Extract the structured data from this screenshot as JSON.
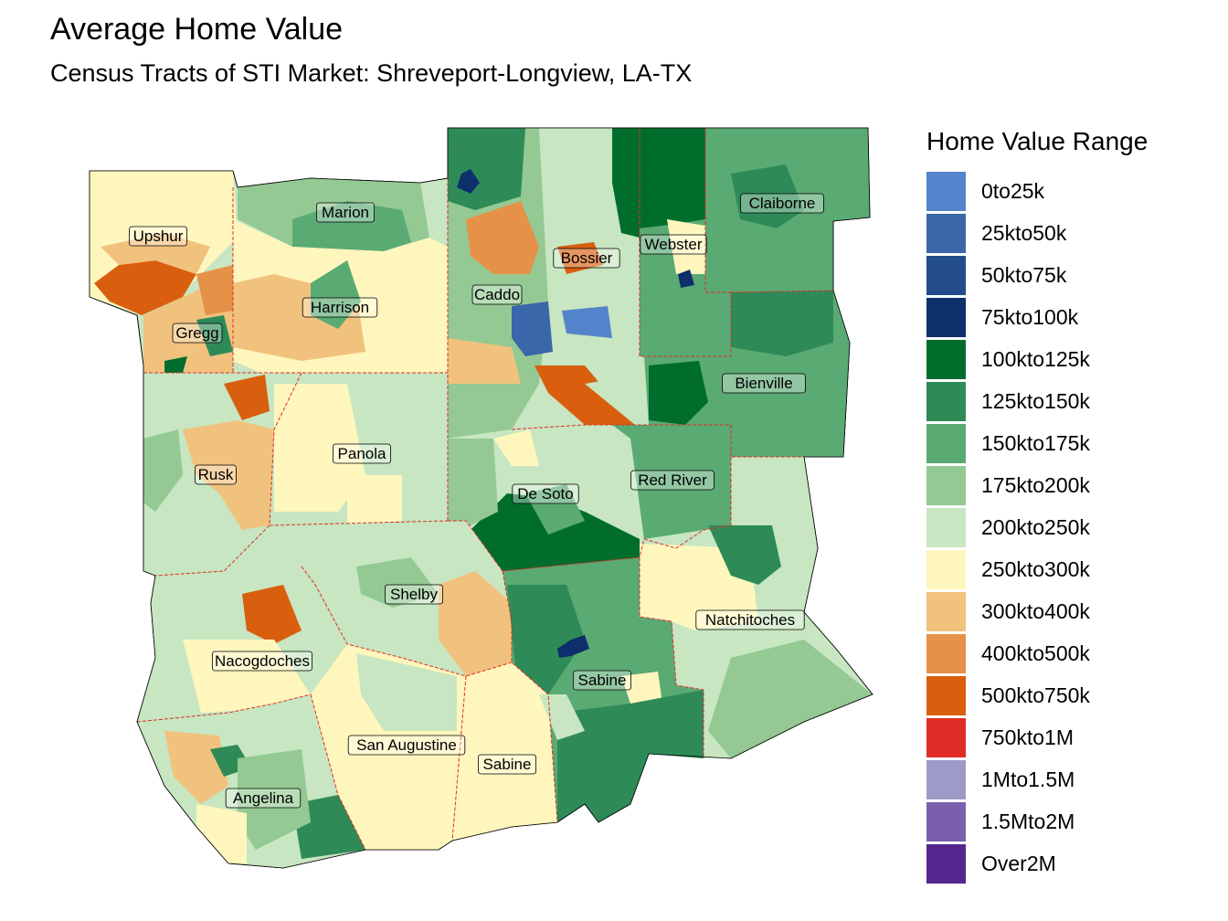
{
  "title": "Average Home Value",
  "subtitle": "Census Tracts of STI Market: Shreveport-Longview, LA-TX",
  "legend": {
    "title": "Home Value Range",
    "items": [
      {
        "label": "0to25k",
        "color": "#5384cc"
      },
      {
        "label": "25kto50k",
        "color": "#3a66aa"
      },
      {
        "label": "50kto75k",
        "color": "#224d8a"
      },
      {
        "label": "75kto100k",
        "color": "#0d2f6b"
      },
      {
        "label": "100kto125k",
        "color": "#006d2c"
      },
      {
        "label": "125kto150k",
        "color": "#2e8b57"
      },
      {
        "label": "150kto175k",
        "color": "#5aaa73"
      },
      {
        "label": "175kto200k",
        "color": "#94c994"
      },
      {
        "label": "200kto250k",
        "color": "#c7e6c1"
      },
      {
        "label": "250kto300k",
        "color": "#fff6bd"
      },
      {
        "label": "300kto400k",
        "color": "#f1c27d"
      },
      {
        "label": "400kto500k",
        "color": "#e69148"
      },
      {
        "label": "500kto750k",
        "color": "#d95f0e"
      },
      {
        "label": "750kto1M",
        "color": "#de2d26"
      },
      {
        "label": "1Mto1.5M",
        "color": "#9e9ac8"
      },
      {
        "label": "1.5Mto2M",
        "color": "#7b5fad"
      },
      {
        "label": "Over2M",
        "color": "#54278f"
      }
    ]
  },
  "counties": [
    "Upshur",
    "Marion",
    "Harrison",
    "Gregg",
    "Caddo",
    "Bossier",
    "Webster",
    "Claiborne",
    "Bienville",
    "Rusk",
    "Panola",
    "De Soto",
    "Red River",
    "Shelby",
    "Natchitoches",
    "Nacogdoches",
    "Sabine",
    "San Augustine",
    "Sabine",
    "Angelina"
  ]
}
